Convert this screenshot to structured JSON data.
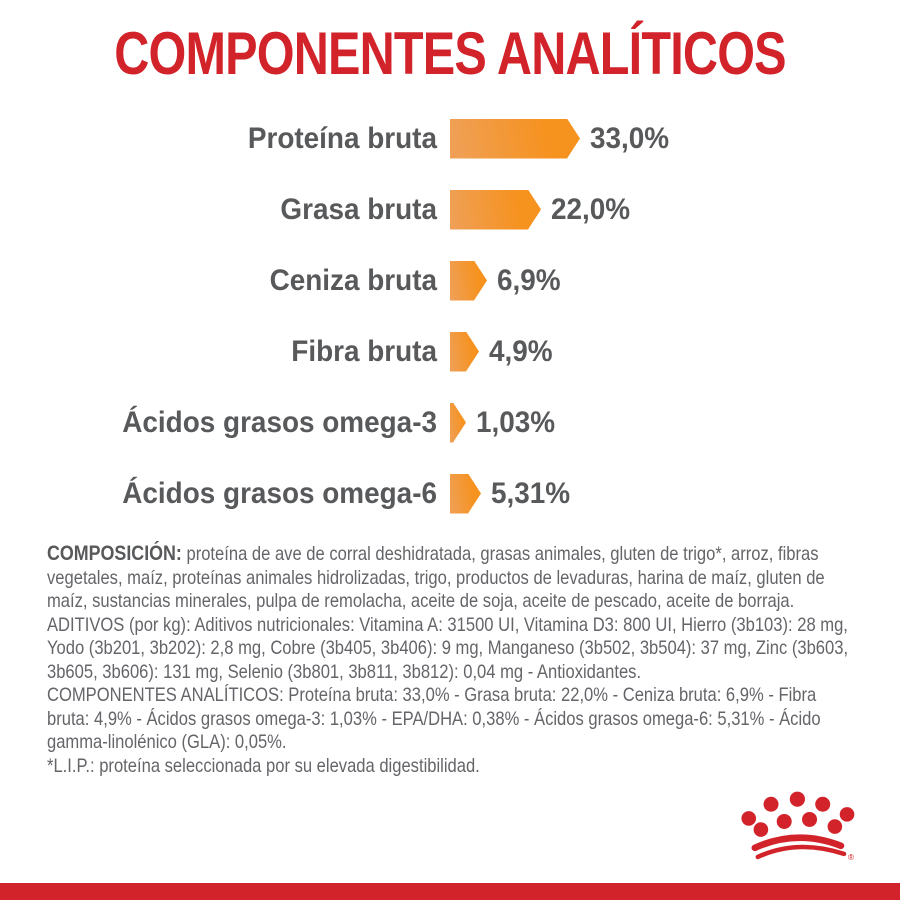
{
  "title": "COMPONENTES ANALÍTICOS",
  "colors": {
    "brand_red": "#d2232a",
    "bar_orange": "#f6921e",
    "bar_orange_light": "#efa058",
    "chart_text_gray": "#58595b",
    "body_text_gray": "#646569"
  },
  "chart_data": {
    "type": "bar",
    "orientation": "horizontal",
    "title": "COMPONENTES ANALÍTICOS",
    "categories": [
      "Proteína bruta",
      "Grasa bruta",
      "Ceniza bruta",
      "Fibra bruta",
      "Ácidos grasos omega-3",
      "Ácidos grasos omega-6"
    ],
    "values": [
      33.0,
      22.0,
      6.9,
      4.9,
      1.03,
      5.31
    ],
    "value_labels": [
      "33,0%",
      "22,0%",
      "6,9%",
      "4,9%",
      "1,03%",
      "5,31%"
    ],
    "unit": "%",
    "bar_color": "#f6921e",
    "label_position": "left",
    "value_position": "right-of-bar",
    "grid": false,
    "legend": false
  },
  "paragraphs": [
    {
      "label": "COMPOSICIÓN:",
      "text": " proteína de ave de corral deshidratada, grasas animales, gluten de trigo*, arroz, fibras vegetales, maíz, proteínas animales hidrolizadas, trigo, productos de levaduras, harina de maíz, gluten de maíz, sustancias minerales, pulpa de remolacha, aceite de soja, aceite de pescado, aceite de borraja."
    },
    {
      "label": "ADITIVOS (por kg):",
      "text": " Aditivos nutricionales: Vitamina A: 31500 UI, Vitamina D3: 800 UI, Hierro (3b103): 28 mg, Yodo (3b201, 3b202): 2,8 mg, Cobre (3b405, 3b406): 9 mg, Manganeso (3b502, 3b504): 37 mg, Zinc (3b603, 3b605, 3b606): 131 mg, Selenio (3b801, 3b811, 3b812): 0,04 mg - Antioxidantes."
    },
    {
      "label": "COMPONENTES ANALÍTICOS:",
      "text": " Proteína bruta: 33,0% - Grasa bruta: 22,0% - Ceniza bruta: 6,9% - Fibra bruta: 4,9% - Ácidos grasos omega-3: 1,03% - EPA/DHA: 0,38% - Ácidos grasos omega-6: 5,31% - Ácido gamma-linolénico (GLA): 0,05%."
    },
    {
      "label": "*L.I.P.:",
      "text": " proteína seleccionada por su elevada digestibilidad."
    }
  ],
  "logo": {
    "name": "royal-canin-crown",
    "registered_mark": "®"
  }
}
